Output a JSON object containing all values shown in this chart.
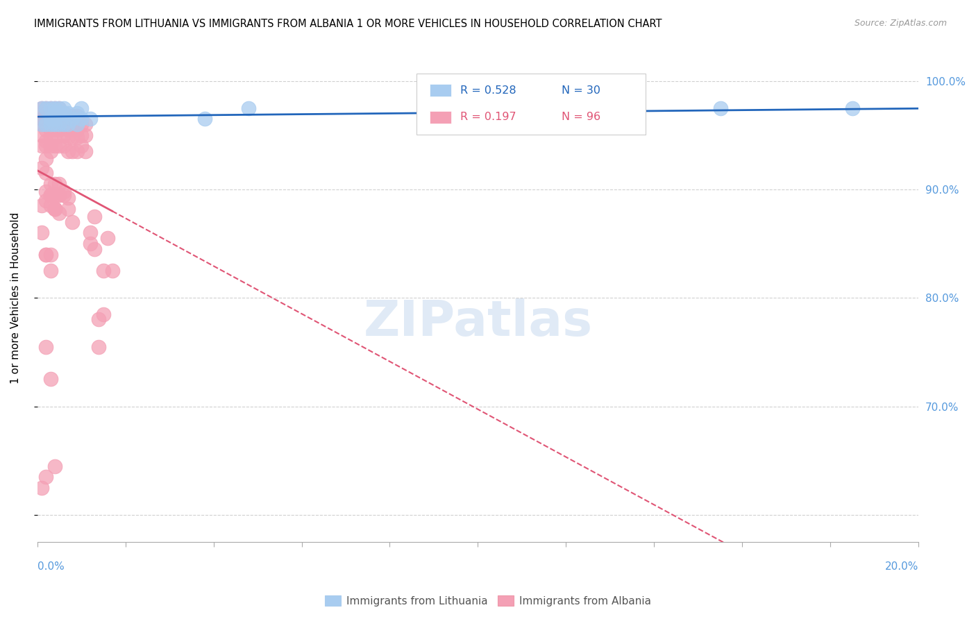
{
  "title": "IMMIGRANTS FROM LITHUANIA VS IMMIGRANTS FROM ALBANIA 1 OR MORE VEHICLES IN HOUSEHOLD CORRELATION CHART",
  "source": "Source: ZipAtlas.com",
  "ylabel": "1 or more Vehicles in Household",
  "y_ticks": [
    0.6,
    0.7,
    0.8,
    0.9,
    1.0
  ],
  "y_tick_labels": [
    "",
    "70.0%",
    "80.0%",
    "90.0%",
    "100.0%"
  ],
  "x_ticks": [
    0.0,
    0.02,
    0.04,
    0.06,
    0.08,
    0.1,
    0.12,
    0.14,
    0.16,
    0.18,
    0.2
  ],
  "legend_lithuania": "Immigrants from Lithuania",
  "legend_albania": "Immigrants from Albania",
  "R_lithuania": 0.528,
  "N_lithuania": 30,
  "R_albania": 0.197,
  "N_albania": 96,
  "color_lithuania": "#a8ccf0",
  "color_albania": "#f4a0b5",
  "color_line_lithuania": "#2266bb",
  "color_line_albania": "#e05575",
  "xlim": [
    0.0,
    0.2
  ],
  "ylim": [
    0.575,
    1.025
  ],
  "lithuania_x": [
    0.001,
    0.001,
    0.002,
    0.002,
    0.003,
    0.003,
    0.003,
    0.004,
    0.004,
    0.004,
    0.004,
    0.005,
    0.005,
    0.005,
    0.006,
    0.006,
    0.006,
    0.007,
    0.007,
    0.008,
    0.009,
    0.009,
    0.01,
    0.01,
    0.012,
    0.038,
    0.048,
    0.108,
    0.155,
    0.185
  ],
  "lithuania_y": [
    0.975,
    0.96,
    0.975,
    0.96,
    0.975,
    0.965,
    0.96,
    0.975,
    0.97,
    0.965,
    0.96,
    0.975,
    0.97,
    0.96,
    0.975,
    0.97,
    0.96,
    0.97,
    0.96,
    0.965,
    0.97,
    0.96,
    0.975,
    0.965,
    0.965,
    0.965,
    0.975,
    0.965,
    0.975,
    0.975
  ],
  "albania_x": [
    0.001,
    0.001,
    0.001,
    0.001,
    0.001,
    0.002,
    0.002,
    0.002,
    0.002,
    0.002,
    0.002,
    0.003,
    0.003,
    0.003,
    0.003,
    0.003,
    0.003,
    0.004,
    0.004,
    0.004,
    0.004,
    0.004,
    0.004,
    0.005,
    0.005,
    0.005,
    0.005,
    0.005,
    0.006,
    0.006,
    0.006,
    0.006,
    0.007,
    0.007,
    0.007,
    0.007,
    0.008,
    0.008,
    0.008,
    0.008,
    0.009,
    0.009,
    0.009,
    0.009,
    0.01,
    0.01,
    0.01,
    0.011,
    0.011,
    0.011,
    0.012,
    0.012,
    0.013,
    0.013,
    0.014,
    0.014,
    0.015,
    0.015,
    0.016,
    0.017,
    0.001,
    0.002,
    0.003,
    0.004,
    0.005,
    0.006,
    0.007,
    0.001,
    0.002,
    0.003,
    0.004,
    0.005,
    0.002,
    0.003,
    0.004,
    0.003,
    0.004,
    0.005,
    0.006,
    0.007,
    0.008,
    0.003,
    0.004,
    0.005,
    0.002,
    0.003,
    0.004,
    0.001,
    0.002,
    0.003,
    0.002,
    0.001,
    0.002,
    0.003,
    0.002,
    0.003
  ],
  "albania_y": [
    0.975,
    0.965,
    0.96,
    0.95,
    0.94,
    0.975,
    0.97,
    0.96,
    0.955,
    0.945,
    0.94,
    0.975,
    0.968,
    0.96,
    0.955,
    0.948,
    0.94,
    0.975,
    0.968,
    0.96,
    0.955,
    0.948,
    0.94,
    0.975,
    0.968,
    0.96,
    0.955,
    0.94,
    0.97,
    0.96,
    0.95,
    0.94,
    0.965,
    0.955,
    0.948,
    0.935,
    0.968,
    0.955,
    0.948,
    0.935,
    0.968,
    0.955,
    0.948,
    0.935,
    0.96,
    0.95,
    0.94,
    0.96,
    0.95,
    0.935,
    0.86,
    0.85,
    0.875,
    0.845,
    0.78,
    0.755,
    0.825,
    0.785,
    0.855,
    0.825,
    0.92,
    0.915,
    0.905,
    0.905,
    0.905,
    0.898,
    0.892,
    0.885,
    0.89,
    0.885,
    0.882,
    0.878,
    0.898,
    0.895,
    0.882,
    0.895,
    0.882,
    0.895,
    0.895,
    0.882,
    0.87,
    0.895,
    0.895,
    0.895,
    0.755,
    0.725,
    0.645,
    0.625,
    0.635,
    0.935,
    0.928,
    0.86,
    0.84,
    0.825,
    0.84,
    0.84
  ]
}
